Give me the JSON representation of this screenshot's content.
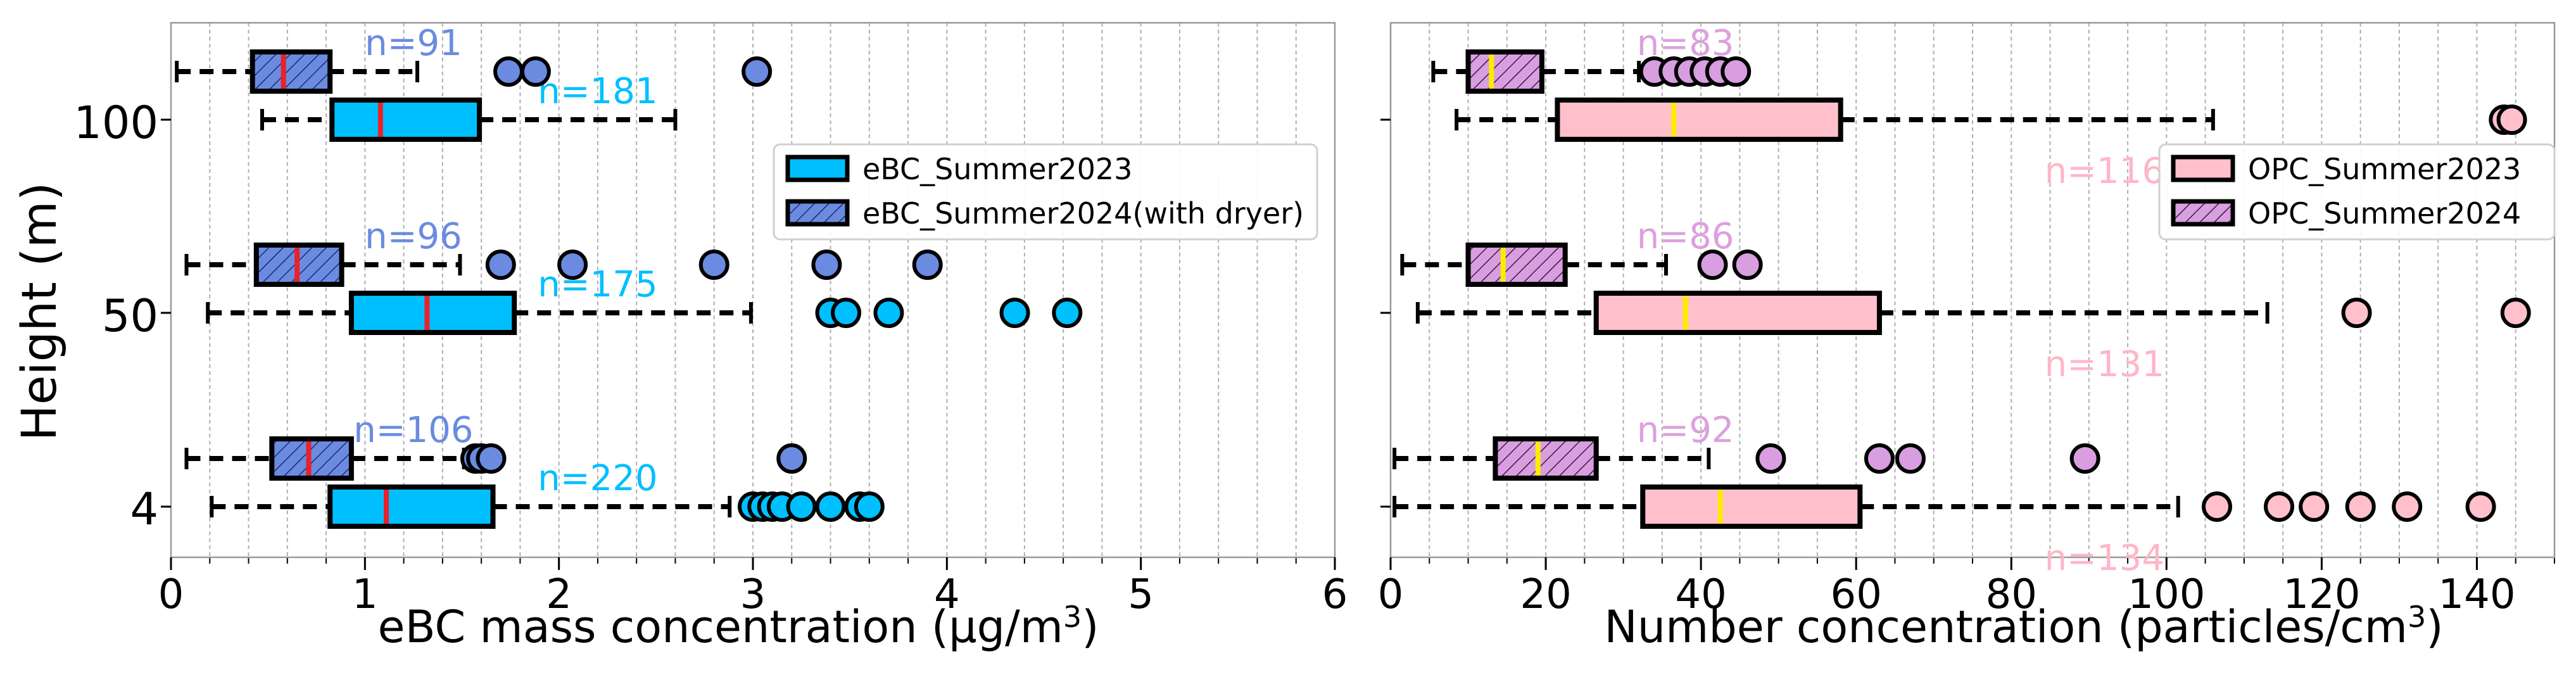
{
  "figure": {
    "ylabel": "Height (m)",
    "heights": [
      "4",
      "50",
      "100"
    ]
  },
  "chart_data": [
    {
      "type": "boxplot",
      "orientation": "horizontal",
      "xlabel": "eBC mass concentration (µg/m³)",
      "xlabel_text": "eBC mass concentration (µg/m",
      "xlabel_sup": "3",
      "xlabel_close": ")",
      "ylabel": "Height (m)",
      "xlim": [
        0,
        6
      ],
      "xticks": [
        0,
        1,
        2,
        3,
        4,
        5,
        6
      ],
      "xtick_labels": [
        "0",
        "1",
        "2",
        "3",
        "4",
        "5",
        "6"
      ],
      "grid": "vertical dashed at major and minor ticks",
      "legend_position": "upper-right",
      "median_color": "#e8222a",
      "series": [
        {
          "name": "eBC_Summer2023",
          "color": "#00bfff",
          "hatch": false,
          "label_color": "#00bfff",
          "boxes": [
            {
              "height": "4",
              "whisker_low": 0.21,
              "q1": 0.82,
              "median": 1.11,
              "q3": 1.66,
              "whisker_high": 2.88,
              "n_label": "n=220",
              "outliers": [
                3.0,
                3.05,
                3.1,
                3.15,
                3.25,
                3.4,
                3.55,
                3.6
              ]
            },
            {
              "height": "50",
              "whisker_low": 0.19,
              "q1": 0.93,
              "median": 1.32,
              "q3": 1.77,
              "whisker_high": 2.99,
              "n_label": "n=175",
              "outliers": [
                3.4,
                3.48,
                3.7,
                4.35,
                4.62
              ]
            },
            {
              "height": "100",
              "whisker_low": 0.47,
              "q1": 0.83,
              "median": 1.08,
              "q3": 1.59,
              "whisker_high": 2.6,
              "n_label": "n=181",
              "outliers": []
            }
          ]
        },
        {
          "name": "eBC_Summer2024(with dryer)",
          "color": "#6a8be0",
          "hatch": true,
          "label_color": "#6a8be0",
          "boxes": [
            {
              "height": "4",
              "whisker_low": 0.08,
              "q1": 0.52,
              "median": 0.71,
              "q3": 0.93,
              "whisker_high": 1.51,
              "n_label": "n=106",
              "outliers": [
                1.57,
                1.6,
                1.65,
                3.2
              ]
            },
            {
              "height": "50",
              "whisker_low": 0.08,
              "q1": 0.44,
              "median": 0.65,
              "q3": 0.88,
              "whisker_high": 1.49,
              "n_label": "n=96",
              "outliers": [
                1.7,
                2.07,
                2.8,
                3.38,
                3.9
              ]
            },
            {
              "height": "100",
              "whisker_low": 0.03,
              "q1": 0.42,
              "median": 0.58,
              "q3": 0.82,
              "whisker_high": 1.27,
              "n_label": "n=91",
              "outliers": [
                1.74,
                1.88,
                3.02
              ]
            }
          ]
        }
      ]
    },
    {
      "type": "boxplot",
      "orientation": "horizontal",
      "xlabel": "Number concentration (particles/cm³)",
      "xlabel_text": "Number concentration (particles/cm",
      "xlabel_sup": "3",
      "xlabel_close": ")",
      "xlim": [
        0,
        150
      ],
      "xticks": [
        0,
        20,
        40,
        60,
        80,
        100,
        120,
        140
      ],
      "xtick_labels": [
        "0",
        "20",
        "40",
        "60",
        "80",
        "100",
        "120",
        "140"
      ],
      "grid": "vertical dashed at major and minor ticks",
      "legend_position": "upper-right",
      "median_color": "#ffeb00",
      "series": [
        {
          "name": "OPC_Summer2023",
          "color": "#ffc0cb",
          "hatch": false,
          "label_color": "#ffb6c8",
          "boxes": [
            {
              "height": "4",
              "whisker_low": 0.5,
              "q1": 32.5,
              "median": 42.5,
              "q3": 60.5,
              "whisker_high": 101.5,
              "n_label": "n=134",
              "outliers": [
                106.5,
                114.5,
                119,
                125,
                131,
                140.5
              ]
            },
            {
              "height": "50",
              "whisker_low": 3.5,
              "q1": 26.5,
              "median": 38,
              "q3": 63,
              "whisker_high": 113,
              "n_label": "n=131",
              "outliers": [
                124.5,
                145
              ]
            },
            {
              "height": "100",
              "whisker_low": 8.5,
              "q1": 21.5,
              "median": 36.5,
              "q3": 58,
              "whisker_high": 106,
              "n_label": "n=116",
              "outliers": [
                143.5,
                144.5
              ]
            }
          ]
        },
        {
          "name": "OPC_Summer2024",
          "color": "#d89ee0",
          "hatch": true,
          "label_color": "#dda0dd",
          "boxes": [
            {
              "height": "4",
              "whisker_low": 0.5,
              "q1": 13.5,
              "median": 19,
              "q3": 26.5,
              "whisker_high": 41,
              "n_label": "n=92",
              "outliers": [
                49,
                63,
                67,
                89.5
              ]
            },
            {
              "height": "50",
              "whisker_low": 1.5,
              "q1": 10,
              "median": 14.5,
              "q3": 22.5,
              "whisker_high": 35.5,
              "n_label": "n=86",
              "outliers": [
                41.5,
                46
              ]
            },
            {
              "height": "100",
              "whisker_low": 5.5,
              "q1": 10,
              "median": 13,
              "q3": 19.5,
              "whisker_high": 32,
              "n_label": "n=83",
              "outliers": [
                34,
                36.5,
                38.5,
                40.5,
                42.5,
                44.5
              ]
            }
          ]
        }
      ]
    }
  ]
}
